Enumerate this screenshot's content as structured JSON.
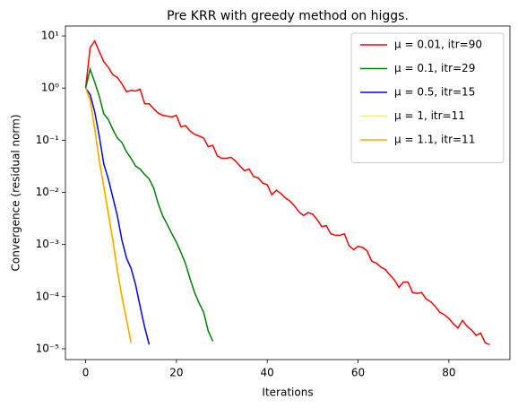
{
  "chart_data": {
    "type": "line",
    "title": "Pre KRR with greedy method on higgs.",
    "x_label": "Iterations",
    "y_label": "Convergence (residual norm)",
    "log_y": true,
    "legend": "upper right",
    "xlim": [
      -4.45,
      93.45
    ],
    "xticks": [
      0,
      20,
      40,
      60,
      80
    ],
    "ylim": [
      6.2e-06,
      15.5
    ],
    "yticks": [
      {
        "value": 1e-05,
        "label": "10⁻⁵"
      },
      {
        "value": 0.0001,
        "label": "10⁻⁴"
      },
      {
        "value": 0.001,
        "label": "10⁻³"
      },
      {
        "value": 0.01,
        "label": "10⁻²"
      },
      {
        "value": 0.1,
        "label": "10⁻¹"
      },
      {
        "value": 1,
        "label": "10⁰"
      },
      {
        "value": 10,
        "label": "10¹"
      }
    ],
    "series": [
      {
        "name": "μ = 0.01, itr=90",
        "color": "#ff0000",
        "x": [
          0,
          1,
          2,
          3,
          4,
          5,
          6,
          7,
          8,
          9,
          10,
          11,
          12,
          13,
          14,
          15,
          16,
          17,
          18,
          19,
          20,
          21,
          22,
          23,
          24,
          25,
          26,
          27,
          28,
          29,
          30,
          31,
          32,
          33,
          34,
          35,
          36,
          37,
          38,
          39,
          40,
          41,
          42,
          43,
          44,
          45,
          46,
          47,
          48,
          49,
          50,
          51,
          52,
          53,
          54,
          55,
          56,
          57,
          58,
          59,
          60,
          61,
          62,
          63,
          64,
          65,
          66,
          67,
          68,
          69,
          70,
          71,
          72,
          73,
          74,
          75,
          76,
          77,
          78,
          79,
          80,
          81,
          82,
          83,
          84,
          85,
          86,
          87,
          88,
          89
        ],
        "values": [
          1,
          6,
          8,
          5,
          3.2,
          2.5,
          1.8,
          1.6,
          1.2,
          0.85,
          0.9,
          0.88,
          0.95,
          0.5,
          0.5,
          0.4,
          0.33,
          0.3,
          0.29,
          0.28,
          0.3,
          0.18,
          0.19,
          0.15,
          0.13,
          0.12,
          0.11,
          0.075,
          0.08,
          0.05,
          0.045,
          0.045,
          0.047,
          0.04,
          0.032,
          0.026,
          0.028,
          0.02,
          0.019,
          0.015,
          0.014,
          0.009,
          0.011,
          0.0095,
          0.0078,
          0.0068,
          0.0055,
          0.0042,
          0.0036,
          0.0041,
          0.0038,
          0.003,
          0.0022,
          0.0023,
          0.0016,
          0.0015,
          0.0015,
          0.0016,
          0.00095,
          0.0008,
          0.00092,
          0.00088,
          0.00075,
          0.00048,
          0.00044,
          0.00037,
          0.00033,
          0.00026,
          0.00021,
          0.00015,
          0.00019,
          0.00019,
          0.00012,
          0.000115,
          0.00012,
          9e-05,
          8e-05,
          6.5e-05,
          5e-05,
          4.5e-05,
          3.8e-05,
          3e-05,
          2.5e-05,
          3.5e-05,
          2.7e-05,
          2.3e-05,
          1.8e-05,
          2e-05,
          1.3e-05,
          1.2e-05
        ]
      },
      {
        "name": "μ = 0.1, itr=29",
        "color": "#008000",
        "x": [
          0,
          1,
          2,
          3,
          4,
          5,
          6,
          7,
          8,
          9,
          10,
          11,
          12,
          13,
          14,
          15,
          16,
          17,
          18,
          19,
          20,
          21,
          22,
          23,
          24,
          25,
          26,
          27,
          28
        ],
        "values": [
          1,
          2.3,
          1.3,
          0.7,
          0.32,
          0.25,
          0.16,
          0.11,
          0.09,
          0.06,
          0.045,
          0.032,
          0.028,
          0.022,
          0.018,
          0.012,
          0.006,
          0.0035,
          0.0024,
          0.0016,
          0.0011,
          0.0007,
          0.00043,
          0.00022,
          0.00012,
          7.5e-05,
          5e-05,
          2.2e-05,
          1.4e-05
        ]
      },
      {
        "name": "μ = 0.5, itr=15",
        "color": "#0000ff",
        "x": [
          0,
          1,
          2,
          3,
          4,
          5,
          6,
          7,
          8,
          9,
          10,
          11,
          12,
          13,
          14
        ],
        "values": [
          1,
          0.75,
          0.35,
          0.12,
          0.035,
          0.018,
          0.008,
          0.0035,
          0.0012,
          0.00055,
          0.00035,
          0.00017,
          6.5e-05,
          2.6e-05,
          1.2e-05
        ]
      },
      {
        "name": "μ = 1, itr=11",
        "color": "#ffff00",
        "x": [
          0,
          1,
          2,
          3,
          4,
          5,
          6,
          7,
          8,
          9,
          10
        ],
        "values": [
          1,
          0.55,
          0.15,
          0.045,
          0.012,
          0.0035,
          0.0011,
          0.0003,
          9e-05,
          3.5e-05,
          1.3e-05
        ]
      },
      {
        "name": "μ = 1.1, itr=11",
        "color": "#ffa500",
        "x": [
          0,
          1,
          2,
          3,
          4,
          5,
          6,
          7,
          8,
          9,
          10
        ],
        "values": [
          1,
          0.6,
          0.17,
          0.04,
          0.013,
          0.004,
          0.0012,
          0.00032,
          0.0001,
          3.7e-05,
          1.3e-05
        ]
      }
    ]
  }
}
